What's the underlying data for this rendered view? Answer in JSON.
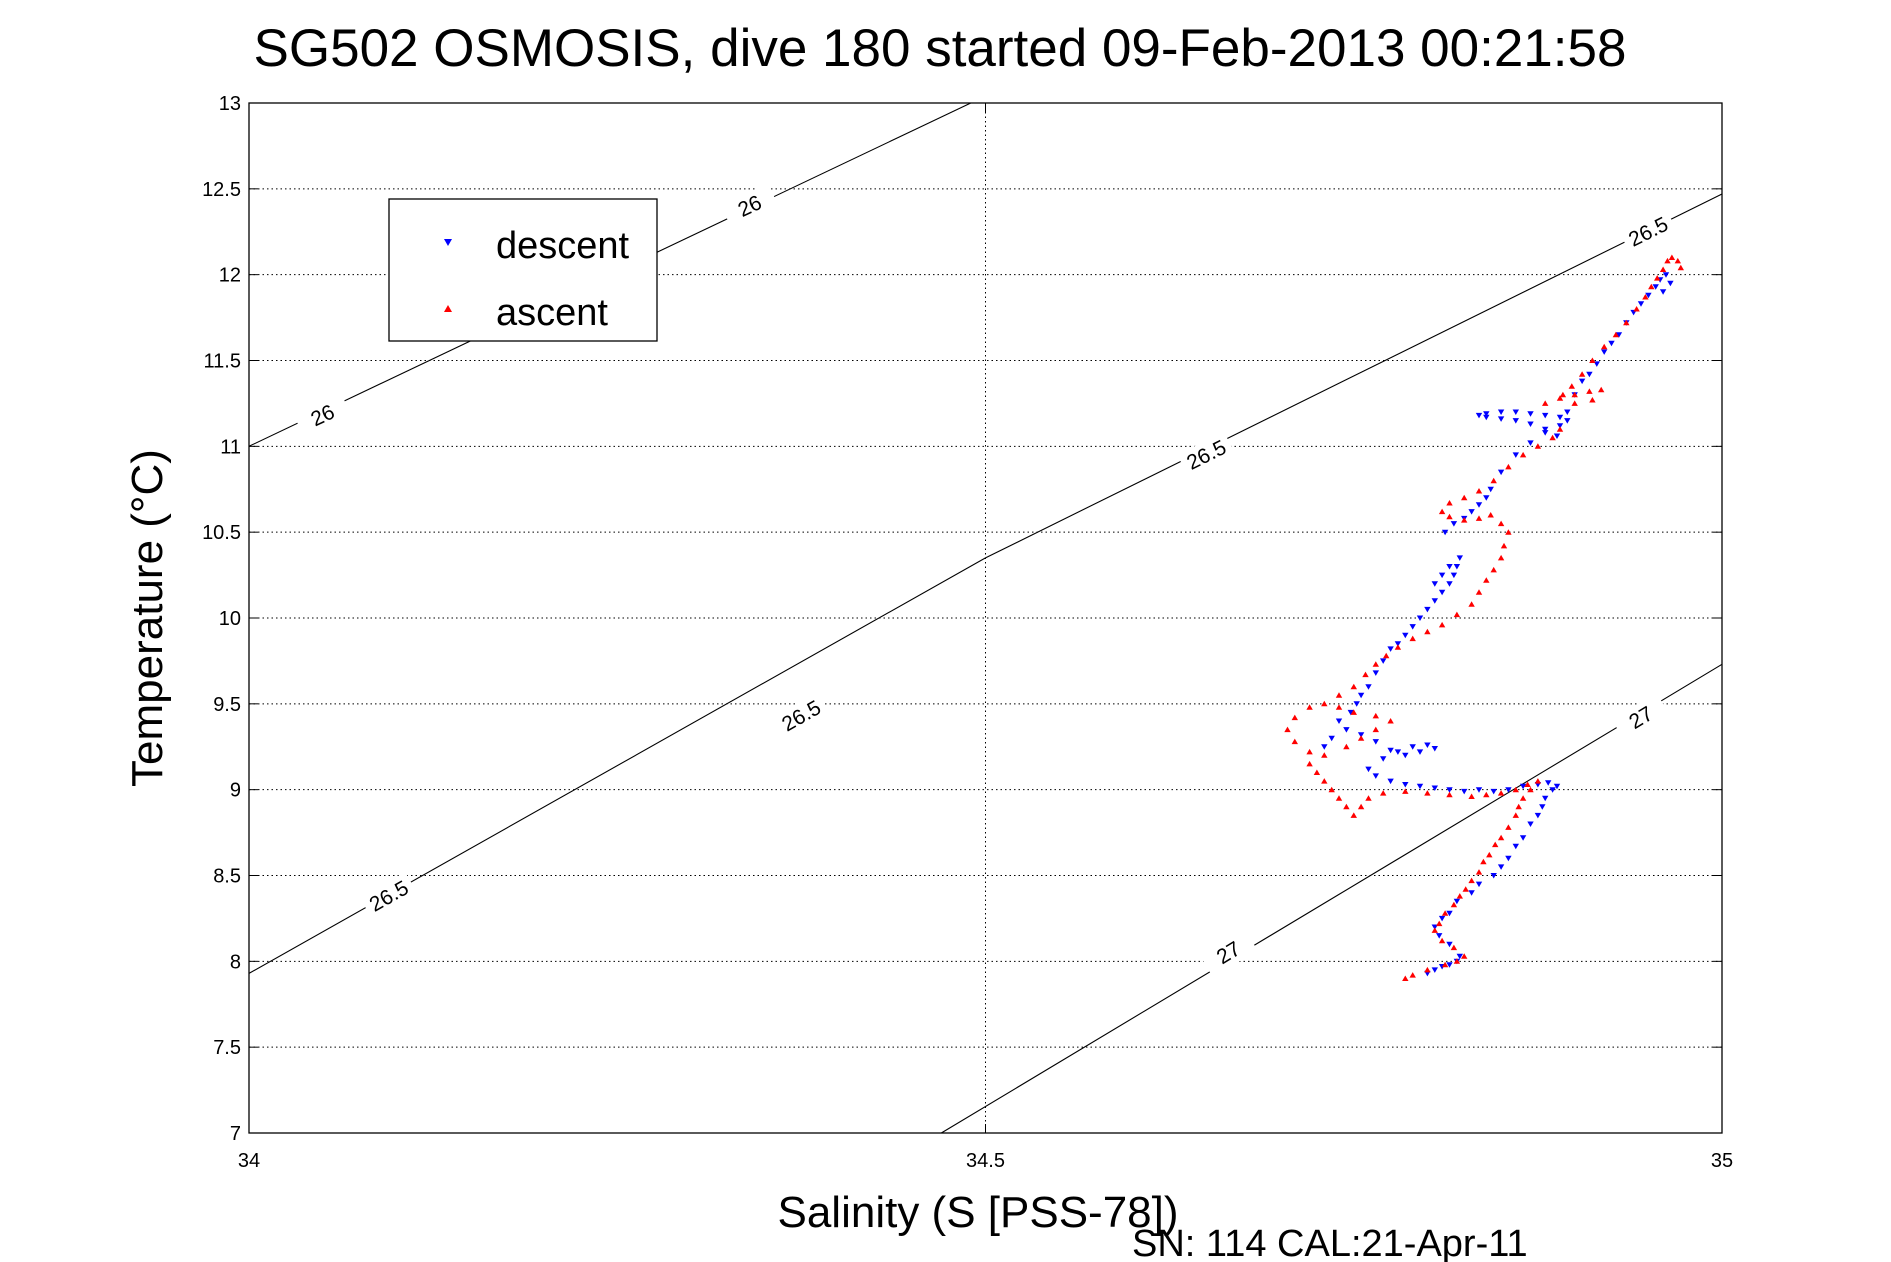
{
  "chart_data": {
    "type": "scatter",
    "title": "SG502 OSMOSIS, dive 180 started 09-Feb-2013 00:21:58",
    "xlabel": "Salinity (S [PSS-78])",
    "ylabel": "Temperature (°C)",
    "footer": "SN: 114  CAL:21-Apr-11",
    "xlim": [
      34,
      35
    ],
    "ylim": [
      7,
      13
    ],
    "xticks": [
      34,
      34.5,
      35
    ],
    "xtick_labels": [
      "34",
      "34.5",
      "35"
    ],
    "yticks": [
      7,
      7.5,
      8,
      8.5,
      9,
      9.5,
      10,
      10.5,
      11,
      11.5,
      12,
      12.5,
      13
    ],
    "ytick_labels": [
      "7",
      "7.5",
      "8",
      "8.5",
      "9",
      "9.5",
      "10",
      "10.5",
      "11",
      "11.5",
      "12",
      "12.5",
      "13"
    ],
    "grid": true,
    "legend_position": "top-left",
    "density_contours": [
      {
        "sigma": "26",
        "points": [
          [
            34.0,
            11.0
          ],
          [
            34.49,
            13.0
          ]
        ],
        "labels": [
          [
            34.05,
            11.18
          ],
          [
            34.34,
            12.4
          ]
        ]
      },
      {
        "sigma": "26.5",
        "points": [
          [
            34.0,
            7.93
          ],
          [
            34.5,
            10.35
          ],
          [
            35.0,
            12.47
          ]
        ],
        "labels": [
          [
            34.095,
            8.38
          ],
          [
            34.375,
            9.43
          ],
          [
            34.65,
            10.95
          ],
          [
            34.95,
            12.25
          ]
        ]
      },
      {
        "sigma": "27",
        "points": [
          [
            34.47,
            7.0
          ],
          [
            34.74,
            8.39
          ],
          [
            35.0,
            9.73
          ]
        ],
        "labels": [
          [
            34.665,
            8.05
          ],
          [
            34.945,
            9.42
          ]
        ]
      }
    ],
    "series": [
      {
        "name": "descent",
        "color": "#0000ff",
        "marker": "triangle-down",
        "points": [
          [
            34.8,
            7.93
          ],
          [
            34.805,
            7.95
          ],
          [
            34.81,
            7.97
          ],
          [
            34.815,
            7.98
          ],
          [
            34.82,
            8.0
          ],
          [
            34.822,
            8.03
          ],
          [
            34.815,
            8.1
          ],
          [
            34.808,
            8.15
          ],
          [
            34.805,
            8.2
          ],
          [
            34.81,
            8.25
          ],
          [
            34.815,
            8.28
          ],
          [
            34.82,
            8.35
          ],
          [
            34.83,
            8.4
          ],
          [
            34.835,
            8.45
          ],
          [
            34.845,
            8.5
          ],
          [
            34.85,
            8.55
          ],
          [
            34.855,
            8.6
          ],
          [
            34.86,
            8.67
          ],
          [
            34.865,
            8.72
          ],
          [
            34.87,
            8.8
          ],
          [
            34.875,
            8.85
          ],
          [
            34.878,
            8.9
          ],
          [
            34.88,
            8.95
          ],
          [
            34.885,
            9.0
          ],
          [
            34.888,
            9.02
          ],
          [
            34.882,
            9.04
          ],
          [
            34.875,
            9.03
          ],
          [
            34.865,
            9.02
          ],
          [
            34.855,
            9.0
          ],
          [
            34.845,
            8.99
          ],
          [
            34.835,
            9.0
          ],
          [
            34.825,
            8.99
          ],
          [
            34.815,
            9.0
          ],
          [
            34.805,
            9.01
          ],
          [
            34.795,
            9.02
          ],
          [
            34.785,
            9.03
          ],
          [
            34.775,
            9.05
          ],
          [
            34.765,
            9.08
          ],
          [
            34.76,
            9.12
          ],
          [
            34.77,
            9.18
          ],
          [
            34.78,
            9.22
          ],
          [
            34.79,
            9.25
          ],
          [
            34.8,
            9.26
          ],
          [
            34.805,
            9.24
          ],
          [
            34.795,
            9.22
          ],
          [
            34.785,
            9.2
          ],
          [
            34.775,
            9.23
          ],
          [
            34.765,
            9.28
          ],
          [
            34.755,
            9.32
          ],
          [
            34.745,
            9.35
          ],
          [
            34.735,
            9.3
          ],
          [
            34.73,
            9.25
          ],
          [
            34.74,
            9.4
          ],
          [
            34.748,
            9.45
          ],
          [
            34.752,
            9.5
          ],
          [
            34.755,
            9.55
          ],
          [
            34.76,
            9.6
          ],
          [
            34.765,
            9.68
          ],
          [
            34.77,
            9.75
          ],
          [
            34.775,
            9.82
          ],
          [
            34.78,
            9.85
          ],
          [
            34.785,
            9.9
          ],
          [
            34.79,
            9.95
          ],
          [
            34.795,
            10.0
          ],
          [
            34.8,
            10.05
          ],
          [
            34.805,
            10.1
          ],
          [
            34.81,
            10.15
          ],
          [
            34.815,
            10.2
          ],
          [
            34.818,
            10.25
          ],
          [
            34.82,
            10.3
          ],
          [
            34.822,
            10.35
          ],
          [
            34.815,
            10.3
          ],
          [
            34.81,
            10.25
          ],
          [
            34.805,
            10.2
          ],
          [
            34.812,
            10.5
          ],
          [
            34.818,
            10.55
          ],
          [
            34.825,
            10.58
          ],
          [
            34.83,
            10.62
          ],
          [
            34.835,
            10.66
          ],
          [
            34.84,
            10.7
          ],
          [
            34.843,
            10.75
          ],
          [
            34.85,
            10.85
          ],
          [
            34.86,
            10.95
          ],
          [
            34.87,
            11.02
          ],
          [
            34.88,
            11.08
          ],
          [
            34.89,
            11.12
          ],
          [
            34.895,
            11.15
          ],
          [
            34.89,
            11.17
          ],
          [
            34.88,
            11.18
          ],
          [
            34.87,
            11.19
          ],
          [
            34.86,
            11.2
          ],
          [
            34.85,
            11.2
          ],
          [
            34.84,
            11.19
          ],
          [
            34.835,
            11.18
          ],
          [
            34.84,
            11.17
          ],
          [
            34.85,
            11.16
          ],
          [
            34.86,
            11.15
          ],
          [
            34.87,
            11.13
          ],
          [
            34.88,
            11.1
          ],
          [
            34.888,
            11.06
          ],
          [
            34.895,
            11.2
          ],
          [
            34.9,
            11.3
          ],
          [
            34.905,
            11.38
          ],
          [
            34.91,
            11.42
          ],
          [
            34.915,
            11.48
          ],
          [
            34.92,
            11.55
          ],
          [
            34.925,
            11.6
          ],
          [
            34.93,
            11.65
          ],
          [
            34.935,
            11.72
          ],
          [
            34.94,
            11.78
          ],
          [
            34.945,
            11.83
          ],
          [
            34.95,
            11.88
          ],
          [
            34.955,
            11.93
          ],
          [
            34.958,
            11.97
          ],
          [
            34.962,
            12.0
          ],
          [
            34.965,
            11.95
          ],
          [
            34.96,
            11.9
          ]
        ]
      },
      {
        "name": "ascent",
        "color": "#ff0000",
        "marker": "triangle-up",
        "points": [
          [
            34.785,
            7.9
          ],
          [
            34.79,
            7.92
          ],
          [
            34.8,
            7.95
          ],
          [
            34.812,
            7.98
          ],
          [
            34.82,
            8.0
          ],
          [
            34.825,
            8.03
          ],
          [
            34.818,
            8.08
          ],
          [
            34.81,
            8.12
          ],
          [
            34.805,
            8.18
          ],
          [
            34.808,
            8.22
          ],
          [
            34.812,
            8.28
          ],
          [
            34.818,
            8.33
          ],
          [
            34.822,
            8.38
          ],
          [
            34.826,
            8.42
          ],
          [
            34.83,
            8.47
          ],
          [
            34.835,
            8.52
          ],
          [
            34.838,
            8.58
          ],
          [
            34.842,
            8.62
          ],
          [
            34.846,
            8.68
          ],
          [
            34.85,
            8.72
          ],
          [
            34.855,
            8.78
          ],
          [
            34.86,
            8.85
          ],
          [
            34.862,
            8.9
          ],
          [
            34.865,
            8.95
          ],
          [
            34.87,
            9.0
          ],
          [
            34.875,
            9.05
          ],
          [
            34.868,
            9.03
          ],
          [
            34.86,
            9.0
          ],
          [
            34.85,
            8.98
          ],
          [
            34.84,
            8.97
          ],
          [
            34.83,
            8.96
          ],
          [
            34.815,
            8.97
          ],
          [
            34.8,
            8.98
          ],
          [
            34.785,
            8.99
          ],
          [
            34.77,
            8.98
          ],
          [
            34.76,
            8.95
          ],
          [
            34.755,
            8.9
          ],
          [
            34.75,
            8.85
          ],
          [
            34.745,
            8.9
          ],
          [
            34.74,
            8.95
          ],
          [
            34.735,
            9.0
          ],
          [
            34.73,
            9.05
          ],
          [
            34.725,
            9.1
          ],
          [
            34.72,
            9.15
          ],
          [
            34.73,
            9.2
          ],
          [
            34.745,
            9.25
          ],
          [
            34.755,
            9.3
          ],
          [
            34.765,
            9.35
          ],
          [
            34.775,
            9.4
          ],
          [
            34.765,
            9.43
          ],
          [
            34.75,
            9.45
          ],
          [
            34.74,
            9.48
          ],
          [
            34.73,
            9.5
          ],
          [
            34.72,
            9.48
          ],
          [
            34.71,
            9.42
          ],
          [
            34.705,
            9.35
          ],
          [
            34.71,
            9.28
          ],
          [
            34.72,
            9.22
          ],
          [
            34.74,
            9.55
          ],
          [
            34.75,
            9.6
          ],
          [
            34.758,
            9.67
          ],
          [
            34.765,
            9.73
          ],
          [
            34.772,
            9.78
          ],
          [
            34.78,
            9.83
          ],
          [
            34.79,
            9.88
          ],
          [
            34.8,
            9.92
          ],
          [
            34.81,
            9.96
          ],
          [
            34.82,
            10.02
          ],
          [
            34.83,
            10.08
          ],
          [
            34.835,
            10.15
          ],
          [
            34.84,
            10.22
          ],
          [
            34.845,
            10.28
          ],
          [
            34.85,
            10.35
          ],
          [
            34.852,
            10.42
          ],
          [
            34.855,
            10.5
          ],
          [
            34.85,
            10.55
          ],
          [
            34.843,
            10.6
          ],
          [
            34.835,
            10.58
          ],
          [
            34.825,
            10.57
          ],
          [
            34.815,
            10.59
          ],
          [
            34.81,
            10.62
          ],
          [
            34.815,
            10.67
          ],
          [
            34.825,
            10.7
          ],
          [
            34.835,
            10.74
          ],
          [
            34.845,
            10.8
          ],
          [
            34.855,
            10.88
          ],
          [
            34.865,
            10.95
          ],
          [
            34.875,
            11.0
          ],
          [
            34.885,
            11.05
          ],
          [
            34.89,
            11.1
          ],
          [
            34.88,
            11.25
          ],
          [
            34.89,
            11.28
          ],
          [
            34.9,
            11.3
          ],
          [
            34.91,
            11.32
          ],
          [
            34.918,
            11.33
          ],
          [
            34.912,
            11.27
          ],
          [
            34.9,
            11.25
          ],
          [
            34.892,
            11.3
          ],
          [
            34.898,
            11.35
          ],
          [
            34.905,
            11.42
          ],
          [
            34.912,
            11.5
          ],
          [
            34.92,
            11.58
          ],
          [
            34.928,
            11.65
          ],
          [
            34.935,
            11.72
          ],
          [
            34.942,
            11.8
          ],
          [
            34.948,
            11.87
          ],
          [
            34.952,
            11.93
          ],
          [
            34.956,
            11.98
          ],
          [
            34.96,
            12.03
          ],
          [
            34.963,
            12.08
          ],
          [
            34.966,
            12.1
          ],
          [
            34.97,
            12.08
          ],
          [
            34.972,
            12.04
          ]
        ]
      }
    ]
  },
  "legend": {
    "descent_label": "descent",
    "ascent_label": "ascent"
  }
}
